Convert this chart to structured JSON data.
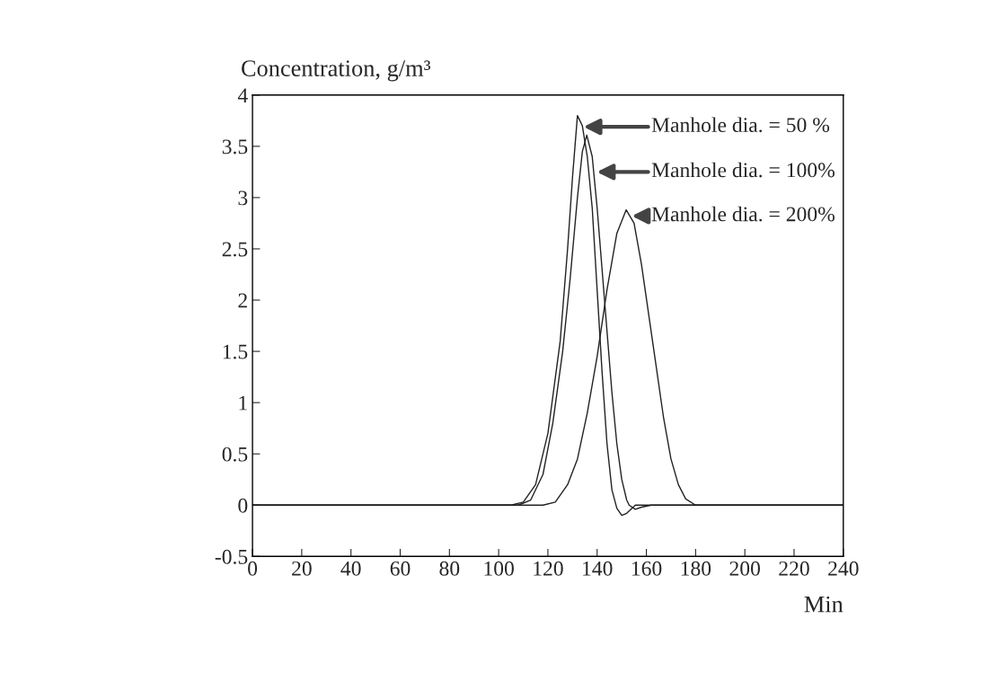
{
  "chart_data": {
    "type": "line",
    "xlabel": "Min",
    "ylabel": "Concentration, g/m³",
    "xlim": [
      0,
      240
    ],
    "xticks": [
      0,
      20,
      40,
      60,
      80,
      100,
      120,
      140,
      160,
      180,
      200,
      220,
      240
    ],
    "ylim": [
      -0.5,
      4
    ],
    "yticks": [
      -0.5,
      0,
      0.5,
      1,
      1.5,
      2,
      2.5,
      3,
      3.5,
      4
    ],
    "grid": false,
    "legend": false,
    "series": [
      {
        "color": "#222222",
        "x": [
          0,
          105,
          110,
          115,
          120,
          125,
          128,
          130,
          132,
          134,
          136,
          138,
          140,
          142,
          144,
          146,
          148,
          150,
          152,
          155.5,
          160,
          240
        ],
        "values": [
          0,
          0,
          0.03,
          0.2,
          0.7,
          1.6,
          2.5,
          3.2,
          3.8,
          3.7,
          3.4,
          2.9,
          2.1,
          1.3,
          0.6,
          0.15,
          -0.03,
          -0.1,
          -0.08,
          0,
          0,
          0
        ]
      },
      {
        "color": "#222222",
        "x": [
          0,
          108,
          113,
          118,
          122,
          126,
          129,
          132,
          134,
          135.8,
          138,
          140,
          142,
          144,
          146,
          148,
          150,
          152,
          153,
          155.5,
          158,
          162,
          240
        ],
        "values": [
          0,
          0,
          0.05,
          0.3,
          0.8,
          1.5,
          2.2,
          3.0,
          3.45,
          3.61,
          3.4,
          2.9,
          2.3,
          1.7,
          1.1,
          0.6,
          0.25,
          0.05,
          0,
          -0.04,
          -0.02,
          0,
          0
        ]
      },
      {
        "color": "#222222",
        "x": [
          0,
          118,
          123,
          128,
          132,
          136,
          140,
          144,
          148,
          151.8,
          155,
          158,
          161,
          164,
          167,
          170,
          173,
          176,
          180,
          240
        ],
        "values": [
          0,
          0,
          0.03,
          0.2,
          0.45,
          0.9,
          1.45,
          2.1,
          2.65,
          2.88,
          2.75,
          2.35,
          1.85,
          1.35,
          0.85,
          0.45,
          0.2,
          0.06,
          0,
          0
        ]
      }
    ],
    "annotations": [
      {
        "text": "Manhole dia. = 50 %",
        "x": 134,
        "y": 3.69
      },
      {
        "text": "Manhole dia. = 100%",
        "x": 139.4,
        "y": 3.25
      },
      {
        "text": "Manhole dia. = 200%",
        "x": 153.6,
        "y": 2.82
      }
    ]
  }
}
